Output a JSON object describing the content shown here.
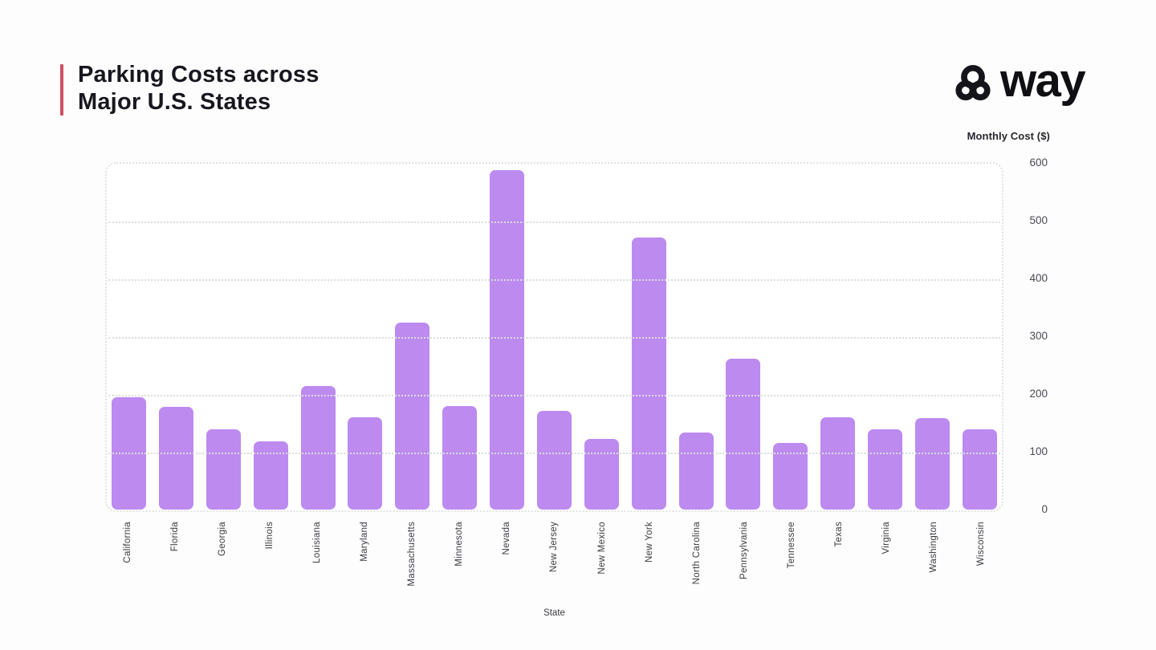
{
  "header": {
    "title_line1": "Parking Costs across",
    "title_line2": "Major U.S. States",
    "accent_color": "#cb5162",
    "logo_text": "way"
  },
  "chart_data": {
    "type": "bar",
    "title": "Parking Costs across Major U.S. States",
    "xlabel": "State",
    "ylabel": "Monthly Cost ($)",
    "ylim": [
      0,
      600
    ],
    "yticks": [
      0,
      100,
      200,
      300,
      400,
      500,
      600
    ],
    "grid": "horizontal-dotted",
    "legend": "none",
    "bar_color": "#bd8af0",
    "categories": [
      "California",
      "Florida",
      "Georgia",
      "Illinois",
      "Louisiana",
      "Maryland",
      "Massachusetts",
      "Minnesota",
      "Nevada",
      "New Jersey",
      "New Mexico",
      "New York",
      "North Carolina",
      "Pennsylvania",
      "Tennessee",
      "Texas",
      "Virginia",
      "Washington",
      "Wisconsin"
    ],
    "values": [
      195,
      179,
      140,
      118,
      215,
      160,
      325,
      180,
      590,
      171,
      123,
      473,
      134,
      262,
      116,
      160,
      140,
      159,
      140
    ]
  }
}
